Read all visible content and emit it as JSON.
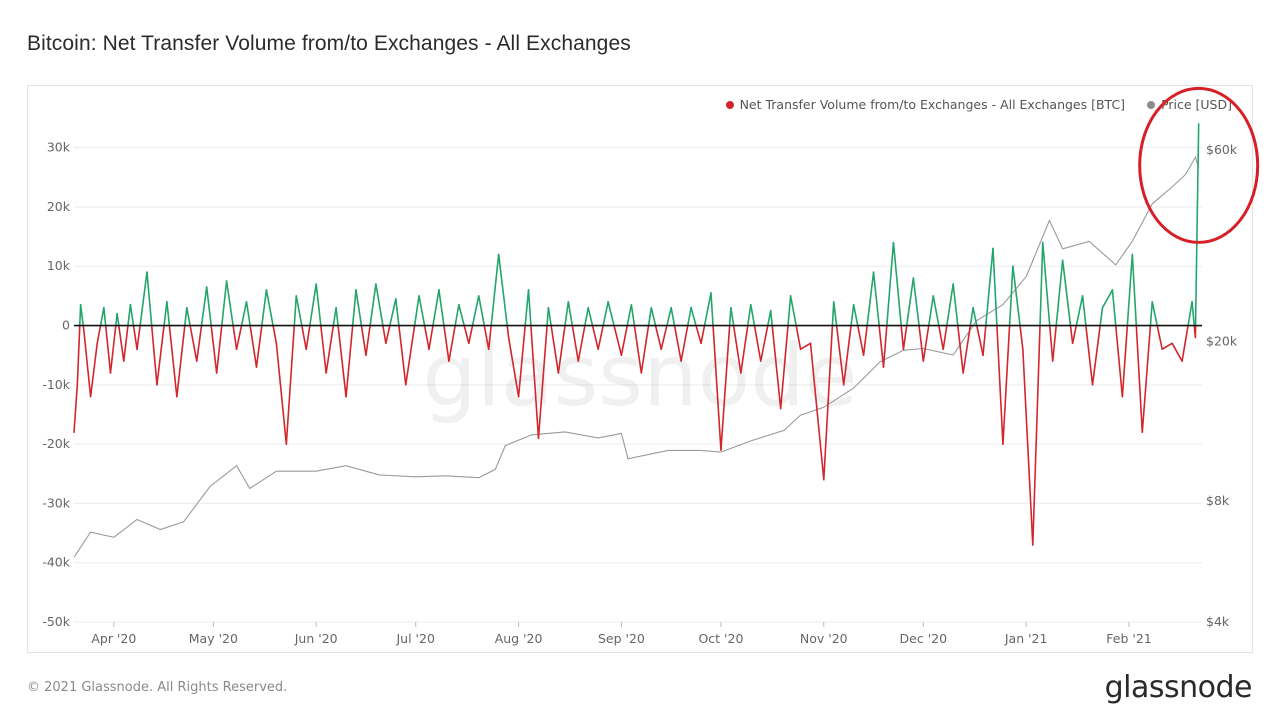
{
  "title": "Bitcoin: Net Transfer Volume from/to Exchanges - All Exchanges",
  "footer": "© 2021 Glassnode. All Rights Reserved.",
  "brand": "glassnode",
  "watermark": "glassnode",
  "colors": {
    "positive": "#23a56b",
    "negative": "#d2262b",
    "price": "#9a9a9a",
    "zero_line": "#111111",
    "highlight": "#d81e26"
  },
  "chart_data": {
    "type": "bar",
    "title": "Bitcoin: Net Transfer Volume from/to Exchanges - All Exchanges",
    "legend_position": "top-right",
    "grid": true,
    "legend": [
      {
        "label": "Net Transfer Volume from/to Exchanges - All Exchanges [BTC]",
        "color": "#d2262b"
      },
      {
        "label": "Price [USD]",
        "color": "#8c8c8c"
      }
    ],
    "x_start": "2020-03-20",
    "x_end": "2021-02-23",
    "x_ticks": [
      {
        "label": "Apr '20",
        "date": "2020-04-01"
      },
      {
        "label": "May '20",
        "date": "2020-05-01"
      },
      {
        "label": "Jun '20",
        "date": "2020-06-01"
      },
      {
        "label": "Jul '20",
        "date": "2020-07-01"
      },
      {
        "label": "Aug '20",
        "date": "2020-08-01"
      },
      {
        "label": "Sep '20",
        "date": "2020-09-01"
      },
      {
        "label": "Oct '20",
        "date": "2020-10-01"
      },
      {
        "label": "Nov '20",
        "date": "2020-11-01"
      },
      {
        "label": "Dec '20",
        "date": "2020-12-01"
      },
      {
        "label": "Jan '21",
        "date": "2021-01-01"
      },
      {
        "label": "Feb '21",
        "date": "2021-02-01"
      }
    ],
    "y_left": {
      "ylim": [
        -50000,
        35000
      ],
      "ticks": [
        {
          "value": 30000,
          "label": "30k"
        },
        {
          "value": 20000,
          "label": "20k"
        },
        {
          "value": 10000,
          "label": "10k"
        },
        {
          "value": 0,
          "label": "0"
        },
        {
          "value": -10000,
          "label": "-10k"
        },
        {
          "value": -20000,
          "label": "-20k"
        },
        {
          "value": -30000,
          "label": "-30k"
        },
        {
          "value": -40000,
          "label": "-40k"
        },
        {
          "value": -50000,
          "label": "-50k"
        }
      ]
    },
    "y_right": {
      "scale": "log",
      "ylim": [
        4000,
        72000
      ],
      "ticks": [
        {
          "value": 60000,
          "label": "$60k"
        },
        {
          "value": 20000,
          "label": "$20k"
        },
        {
          "value": 8000,
          "label": "$8k"
        },
        {
          "value": 4000,
          "label": "$4k"
        }
      ]
    },
    "series": [
      {
        "name": "Net Transfer Volume from/to Exchanges - All Exchanges [BTC]",
        "axis": "left",
        "points": [
          {
            "date": "2020-03-20",
            "value": -18000
          },
          {
            "date": "2020-03-21",
            "value": -10000
          },
          {
            "date": "2020-03-22",
            "value": 3500
          },
          {
            "date": "2020-03-23",
            "value": -1000
          },
          {
            "date": "2020-03-25",
            "value": -12000
          },
          {
            "date": "2020-03-27",
            "value": -3000
          },
          {
            "date": "2020-03-29",
            "value": 3000
          },
          {
            "date": "2020-03-31",
            "value": -8000
          },
          {
            "date": "2020-04-02",
            "value": 2000
          },
          {
            "date": "2020-04-04",
            "value": -6000
          },
          {
            "date": "2020-04-06",
            "value": 3500
          },
          {
            "date": "2020-04-08",
            "value": -4000
          },
          {
            "date": "2020-04-11",
            "value": 9000
          },
          {
            "date": "2020-04-14",
            "value": -10000
          },
          {
            "date": "2020-04-17",
            "value": 4000
          },
          {
            "date": "2020-04-20",
            "value": -12000
          },
          {
            "date": "2020-04-23",
            "value": 3000
          },
          {
            "date": "2020-04-26",
            "value": -6000
          },
          {
            "date": "2020-04-29",
            "value": 6500
          },
          {
            "date": "2020-05-02",
            "value": -8000
          },
          {
            "date": "2020-05-05",
            "value": 7500
          },
          {
            "date": "2020-05-08",
            "value": -4000
          },
          {
            "date": "2020-05-11",
            "value": 4000
          },
          {
            "date": "2020-05-14",
            "value": -7000
          },
          {
            "date": "2020-05-17",
            "value": 6000
          },
          {
            "date": "2020-05-20",
            "value": -3000
          },
          {
            "date": "2020-05-23",
            "value": -20000
          },
          {
            "date": "2020-05-26",
            "value": 5000
          },
          {
            "date": "2020-05-29",
            "value": -4000
          },
          {
            "date": "2020-06-01",
            "value": 7000
          },
          {
            "date": "2020-06-04",
            "value": -8000
          },
          {
            "date": "2020-06-07",
            "value": 3000
          },
          {
            "date": "2020-06-10",
            "value": -12000
          },
          {
            "date": "2020-06-13",
            "value": 6000
          },
          {
            "date": "2020-06-16",
            "value": -5000
          },
          {
            "date": "2020-06-19",
            "value": 7000
          },
          {
            "date": "2020-06-22",
            "value": -3000
          },
          {
            "date": "2020-06-25",
            "value": 4500
          },
          {
            "date": "2020-06-28",
            "value": -10000
          },
          {
            "date": "2020-07-02",
            "value": 5000
          },
          {
            "date": "2020-07-05",
            "value": -4000
          },
          {
            "date": "2020-07-08",
            "value": 6000
          },
          {
            "date": "2020-07-11",
            "value": -6000
          },
          {
            "date": "2020-07-14",
            "value": 3500
          },
          {
            "date": "2020-07-17",
            "value": -3000
          },
          {
            "date": "2020-07-20",
            "value": 5000
          },
          {
            "date": "2020-07-23",
            "value": -4000
          },
          {
            "date": "2020-07-26",
            "value": 12000
          },
          {
            "date": "2020-07-29",
            "value": -2000
          },
          {
            "date": "2020-08-01",
            "value": -12000
          },
          {
            "date": "2020-08-04",
            "value": 6000
          },
          {
            "date": "2020-08-07",
            "value": -19000
          },
          {
            "date": "2020-08-10",
            "value": 3000
          },
          {
            "date": "2020-08-13",
            "value": -8000
          },
          {
            "date": "2020-08-16",
            "value": 4000
          },
          {
            "date": "2020-08-19",
            "value": -6000
          },
          {
            "date": "2020-08-22",
            "value": 3000
          },
          {
            "date": "2020-08-25",
            "value": -4000
          },
          {
            "date": "2020-08-28",
            "value": 4000
          },
          {
            "date": "2020-09-01",
            "value": -5000
          },
          {
            "date": "2020-09-04",
            "value": 3500
          },
          {
            "date": "2020-09-07",
            "value": -8000
          },
          {
            "date": "2020-09-10",
            "value": 3000
          },
          {
            "date": "2020-09-13",
            "value": -4000
          },
          {
            "date": "2020-09-16",
            "value": 3000
          },
          {
            "date": "2020-09-19",
            "value": -6000
          },
          {
            "date": "2020-09-22",
            "value": 3000
          },
          {
            "date": "2020-09-25",
            "value": -3000
          },
          {
            "date": "2020-09-28",
            "value": 5500
          },
          {
            "date": "2020-10-01",
            "value": -21000
          },
          {
            "date": "2020-10-04",
            "value": 3000
          },
          {
            "date": "2020-10-07",
            "value": -8000
          },
          {
            "date": "2020-10-10",
            "value": 3500
          },
          {
            "date": "2020-10-13",
            "value": -6000
          },
          {
            "date": "2020-10-16",
            "value": 2500
          },
          {
            "date": "2020-10-19",
            "value": -14000
          },
          {
            "date": "2020-10-22",
            "value": 5000
          },
          {
            "date": "2020-10-25",
            "value": -4000
          },
          {
            "date": "2020-10-28",
            "value": -3000
          },
          {
            "date": "2020-11-01",
            "value": -26000
          },
          {
            "date": "2020-11-04",
            "value": 4000
          },
          {
            "date": "2020-11-07",
            "value": -10000
          },
          {
            "date": "2020-11-10",
            "value": 3500
          },
          {
            "date": "2020-11-13",
            "value": -5000
          },
          {
            "date": "2020-11-16",
            "value": 9000
          },
          {
            "date": "2020-11-19",
            "value": -7000
          },
          {
            "date": "2020-11-22",
            "value": 14000
          },
          {
            "date": "2020-11-25",
            "value": -4000
          },
          {
            "date": "2020-11-28",
            "value": 8000
          },
          {
            "date": "2020-12-01",
            "value": -6000
          },
          {
            "date": "2020-12-04",
            "value": 5000
          },
          {
            "date": "2020-12-07",
            "value": -4000
          },
          {
            "date": "2020-12-10",
            "value": 7000
          },
          {
            "date": "2020-12-13",
            "value": -8000
          },
          {
            "date": "2020-12-16",
            "value": 3000
          },
          {
            "date": "2020-12-19",
            "value": -5000
          },
          {
            "date": "2020-12-22",
            "value": 13000
          },
          {
            "date": "2020-12-25",
            "value": -20000
          },
          {
            "date": "2020-12-28",
            "value": 10000
          },
          {
            "date": "2020-12-31",
            "value": -4000
          },
          {
            "date": "2021-01-03",
            "value": -37000
          },
          {
            "date": "2021-01-06",
            "value": 14000
          },
          {
            "date": "2021-01-09",
            "value": -6000
          },
          {
            "date": "2021-01-12",
            "value": 11000
          },
          {
            "date": "2021-01-15",
            "value": -3000
          },
          {
            "date": "2021-01-18",
            "value": 5000
          },
          {
            "date": "2021-01-21",
            "value": -10000
          },
          {
            "date": "2021-01-24",
            "value": 3000
          },
          {
            "date": "2021-01-27",
            "value": 6000
          },
          {
            "date": "2021-01-30",
            "value": -12000
          },
          {
            "date": "2021-02-02",
            "value": 12000
          },
          {
            "date": "2021-02-05",
            "value": -18000
          },
          {
            "date": "2021-02-08",
            "value": 4000
          },
          {
            "date": "2021-02-11",
            "value": -4000
          },
          {
            "date": "2021-02-14",
            "value": -3000
          },
          {
            "date": "2021-02-17",
            "value": -6000
          },
          {
            "date": "2021-02-20",
            "value": 4000
          },
          {
            "date": "2021-02-21",
            "value": -2000
          },
          {
            "date": "2021-02-22",
            "value": 34000
          }
        ]
      },
      {
        "name": "Price [USD]",
        "axis": "right",
        "points": [
          {
            "date": "2020-03-20",
            "value": 5800
          },
          {
            "date": "2020-03-25",
            "value": 6700
          },
          {
            "date": "2020-04-01",
            "value": 6500
          },
          {
            "date": "2020-04-08",
            "value": 7200
          },
          {
            "date": "2020-04-15",
            "value": 6800
          },
          {
            "date": "2020-04-22",
            "value": 7100
          },
          {
            "date": "2020-04-30",
            "value": 8700
          },
          {
            "date": "2020-05-08",
            "value": 9800
          },
          {
            "date": "2020-05-12",
            "value": 8600
          },
          {
            "date": "2020-05-20",
            "value": 9500
          },
          {
            "date": "2020-06-01",
            "value": 9500
          },
          {
            "date": "2020-06-10",
            "value": 9800
          },
          {
            "date": "2020-06-20",
            "value": 9300
          },
          {
            "date": "2020-07-01",
            "value": 9200
          },
          {
            "date": "2020-07-10",
            "value": 9250
          },
          {
            "date": "2020-07-20",
            "value": 9150
          },
          {
            "date": "2020-07-25",
            "value": 9600
          },
          {
            "date": "2020-07-28",
            "value": 11000
          },
          {
            "date": "2020-08-05",
            "value": 11700
          },
          {
            "date": "2020-08-15",
            "value": 11900
          },
          {
            "date": "2020-08-25",
            "value": 11500
          },
          {
            "date": "2020-09-01",
            "value": 11800
          },
          {
            "date": "2020-09-03",
            "value": 10200
          },
          {
            "date": "2020-09-15",
            "value": 10700
          },
          {
            "date": "2020-09-25",
            "value": 10700
          },
          {
            "date": "2020-10-01",
            "value": 10600
          },
          {
            "date": "2020-10-10",
            "value": 11300
          },
          {
            "date": "2020-10-20",
            "value": 12000
          },
          {
            "date": "2020-10-25",
            "value": 13100
          },
          {
            "date": "2020-11-01",
            "value": 13700
          },
          {
            "date": "2020-11-10",
            "value": 15300
          },
          {
            "date": "2020-11-18",
            "value": 17800
          },
          {
            "date": "2020-11-25",
            "value": 19000
          },
          {
            "date": "2020-12-01",
            "value": 19200
          },
          {
            "date": "2020-12-10",
            "value": 18500
          },
          {
            "date": "2020-12-17",
            "value": 22500
          },
          {
            "date": "2020-12-25",
            "value": 24700
          },
          {
            "date": "2021-01-01",
            "value": 29000
          },
          {
            "date": "2021-01-08",
            "value": 40000
          },
          {
            "date": "2021-01-12",
            "value": 34000
          },
          {
            "date": "2021-01-20",
            "value": 35500
          },
          {
            "date": "2021-01-28",
            "value": 31000
          },
          {
            "date": "2021-02-02",
            "value": 35500
          },
          {
            "date": "2021-02-08",
            "value": 44000
          },
          {
            "date": "2021-02-14",
            "value": 48500
          },
          {
            "date": "2021-02-18",
            "value": 52000
          },
          {
            "date": "2021-02-21",
            "value": 57500
          },
          {
            "date": "2021-02-22",
            "value": 54000
          }
        ]
      }
    ]
  }
}
